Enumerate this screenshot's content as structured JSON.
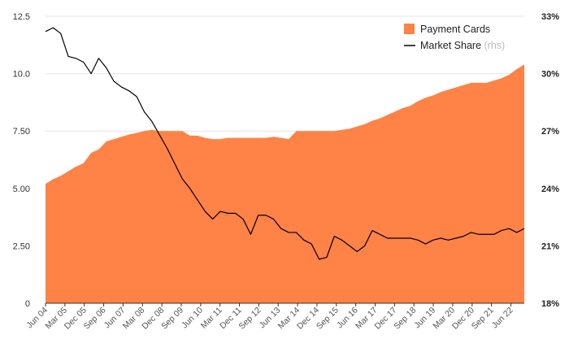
{
  "chart_data": {
    "type": "area",
    "title": "",
    "xlabel": "",
    "ylabel": "",
    "grid": true,
    "legend_position": "top-right",
    "colors": {
      "area": "#ff8246",
      "line": "#000000",
      "grid": "#e6e6e6",
      "axis": "#333333"
    },
    "y_left": {
      "lim": [
        0,
        12.5
      ],
      "ticks": [
        0,
        2.5,
        5,
        7.5,
        10,
        12.5
      ],
      "tick_labels": [
        "0",
        "2.50",
        "5.00",
        "7.50",
        "10.0",
        "12.5"
      ]
    },
    "y_right": {
      "lim": [
        18,
        33
      ],
      "ticks": [
        18,
        21,
        24,
        27,
        30,
        33
      ],
      "tick_labels": [
        "18%",
        "21%",
        "24%",
        "27%",
        "30%",
        "33%"
      ]
    },
    "x_tick_labels": [
      "Jun 04",
      "Mar 05",
      "Dec 05",
      "Sep 06",
      "Jun 07",
      "Mar 08",
      "Dec 08",
      "Sep 09",
      "Jun 10",
      "Mar 11",
      "Dec 11",
      "Sep 12",
      "Jun 13",
      "Mar 14",
      "Dec 14",
      "Sep 15",
      "Jun 16",
      "Mar 17",
      "Dec 17",
      "Sep 18",
      "Jun 19",
      "Mar 20",
      "Dec 20",
      "Sep 21",
      "Jun 22"
    ],
    "series": [
      {
        "name": "Payment Cards",
        "kind": "area",
        "axis": "left",
        "start": "Jun 04",
        "values": [
          5.2,
          5.4,
          5.55,
          5.75,
          5.95,
          6.1,
          6.55,
          6.7,
          7.05,
          7.15,
          7.25,
          7.35,
          7.42,
          7.5,
          7.55,
          7.5,
          7.5,
          7.5,
          7.5,
          7.3,
          7.3,
          7.2,
          7.15,
          7.15,
          7.2,
          7.2,
          7.2,
          7.2,
          7.2,
          7.2,
          7.25,
          7.2,
          7.15,
          7.5,
          7.5,
          7.5,
          7.5,
          7.5,
          7.5,
          7.55,
          7.6,
          7.7,
          7.8,
          7.95,
          8.05,
          8.2,
          8.35,
          8.5,
          8.6,
          8.8,
          8.95,
          9.05,
          9.2,
          9.3,
          9.4,
          9.5,
          9.6,
          9.6,
          9.6,
          9.7,
          9.8,
          9.95,
          10.2,
          10.4
        ]
      },
      {
        "name": "Market Share",
        "name_note": "(rhs)",
        "kind": "line",
        "axis": "right",
        "start": "Jun 04",
        "values": [
          32.2,
          32.4,
          32.1,
          30.9,
          30.8,
          30.6,
          30.0,
          30.8,
          30.3,
          29.6,
          29.3,
          29.1,
          28.8,
          28.0,
          27.5,
          26.8,
          26.1,
          25.3,
          24.5,
          24.0,
          23.4,
          22.8,
          22.4,
          22.8,
          22.7,
          22.7,
          22.4,
          21.6,
          22.6,
          22.6,
          22.4,
          21.9,
          21.7,
          21.7,
          21.3,
          21.1,
          20.3,
          20.4,
          21.5,
          21.3,
          21.0,
          20.7,
          21.0,
          21.8,
          21.6,
          21.4,
          21.4,
          21.4,
          21.4,
          21.3,
          21.1,
          21.3,
          21.4,
          21.3,
          21.4,
          21.5,
          21.7,
          21.6,
          21.6,
          21.6,
          21.8,
          21.9,
          21.7,
          21.9
        ]
      }
    ]
  }
}
